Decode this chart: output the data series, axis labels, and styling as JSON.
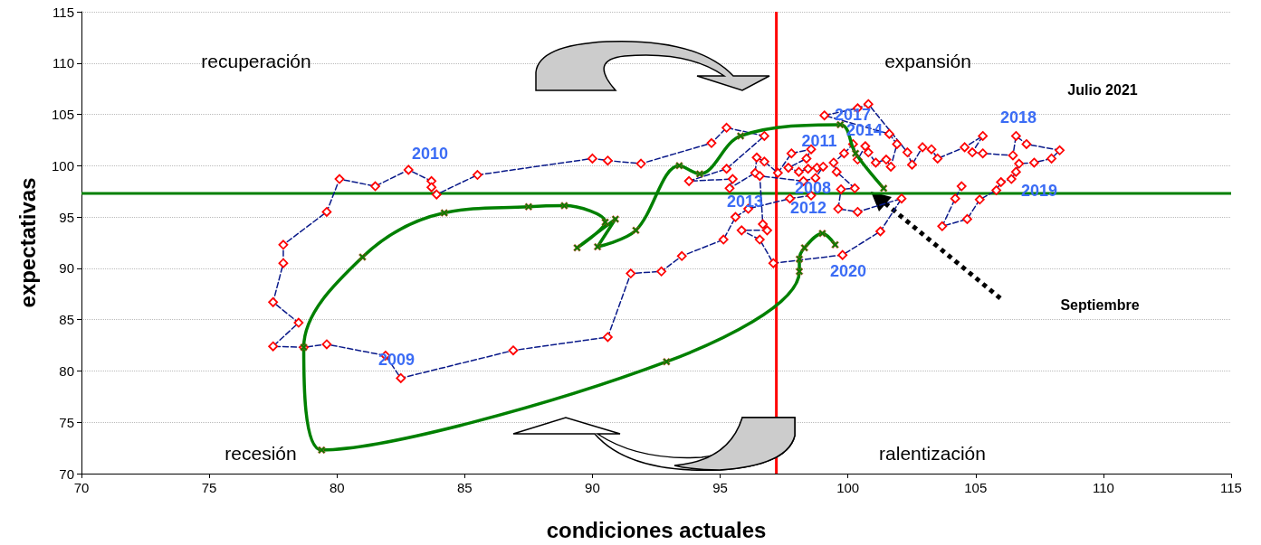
{
  "chart_data": {
    "type": "line",
    "xlabel": "condiciones actuales",
    "ylabel": "expectativas",
    "xlim": [
      70,
      115
    ],
    "xticks": [
      70,
      75,
      80,
      85,
      90,
      95,
      100,
      105,
      110,
      115
    ],
    "ylim": [
      70,
      115
    ],
    "yticks": [
      70,
      75,
      80,
      85,
      90,
      95,
      100,
      105,
      110,
      115
    ],
    "grid": "y",
    "series": [
      {
        "color": "#ff0000",
        "marker": "diamond",
        "line_style": "dashed",
        "x": [
          98.56,
          97.73,
          96.1,
          95.6,
          95.13,
          93.5,
          92.7,
          91.5,
          90.6,
          86.9,
          82.5,
          81.9,
          79.6,
          78.7,
          77.5,
          78.5,
          77.5,
          77.9,
          77.9,
          79.6,
          80.1,
          81.5,
          82.8,
          83.7,
          83.7,
          83.9,
          85.5,
          90.0,
          90.6,
          91.9,
          94.66,
          95.25,
          96.73,
          95.25,
          93.78,
          95.49,
          95.37,
          96.37,
          96.43,
          96.73,
          97.26,
          97.79,
          98.56,
          98.38,
          97.67,
          98.08,
          98.44,
          98.79,
          99.03,
          98.73,
          98.26,
          96.55,
          96.67,
          96.84,
          95.84,
          96.55,
          97.08,
          99.79,
          101.27,
          102.1,
          100.38,
          99.62,
          99.73,
          100.27,
          99.56,
          99.44,
          99.85,
          100.2,
          100.38,
          100.68,
          100.8,
          101.09,
          101.5,
          101.68,
          101.92,
          101.62,
          99.08,
          100.38,
          100.8,
          102.33,
          102.51,
          102.92,
          103.27,
          103.51,
          104.57,
          105.28,
          104.87,
          105.28,
          106.46,
          106.58,
          106.99,
          108.29,
          107.97,
          107.29,
          106.7,
          106.58,
          106.4,
          105.99,
          105.81,
          105.16,
          104.67,
          103.69,
          104.2,
          104.45
        ],
        "values": [
          97.1,
          96.8,
          95.8,
          95.0,
          92.8,
          91.2,
          89.7,
          89.5,
          83.3,
          82.0,
          79.3,
          81.5,
          82.6,
          82.3,
          82.4,
          84.7,
          86.7,
          90.5,
          92.3,
          95.5,
          98.7,
          98.0,
          99.6,
          98.5,
          97.9,
          97.2,
          99.1,
          100.7,
          100.5,
          100.2,
          102.2,
          103.7,
          102.9,
          99.7,
          98.5,
          98.7,
          97.8,
          99.3,
          100.8,
          100.4,
          99.3,
          101.2,
          101.6,
          100.7,
          99.8,
          99.4,
          99.7,
          99.8,
          99.9,
          98.8,
          98.5,
          99.0,
          94.3,
          93.7,
          93.7,
          92.8,
          90.5,
          91.3,
          93.6,
          96.8,
          95.5,
          95.8,
          97.7,
          97.8,
          99.4,
          100.3,
          101.2,
          102.1,
          100.6,
          101.9,
          101.3,
          100.3,
          100.6,
          99.9,
          102.1,
          103.1,
          104.9,
          105.6,
          106.0,
          101.3,
          100.1,
          101.8,
          101.6,
          100.7,
          101.8,
          102.9,
          101.3,
          101.2,
          101.0,
          102.9,
          102.1,
          101.5,
          100.7,
          100.3,
          100.2,
          99.4,
          98.7,
          98.4,
          97.6,
          96.7,
          94.8,
          94.1,
          96.8,
          98.0
        ]
      },
      {
        "color": "#008000",
        "marker": "cross",
        "line_style": "solid",
        "x": [
          99.5,
          99.0,
          98.3,
          98.1,
          98.1,
          92.9,
          79.4,
          78.7,
          81.0,
          84.2,
          87.5,
          88.9,
          90.5,
          89.4,
          90.9,
          90.2,
          91.7,
          93.4,
          94.2,
          95.8,
          99.7,
          100.3,
          101.4
        ],
        "values": [
          92.3,
          93.4,
          92.0,
          90.9,
          89.7,
          80.9,
          72.3,
          82.3,
          91.1,
          95.4,
          96.0,
          96.1,
          94.5,
          92.0,
          94.8,
          92.1,
          93.7,
          100.0,
          99.2,
          102.9,
          104.0,
          101.2,
          97.8
        ]
      }
    ],
    "ref_lines": [
      {
        "axis": "y",
        "value": 97.3,
        "color": "#008000"
      },
      {
        "axis": "x",
        "value": 97.2,
        "color": "#ff0000"
      }
    ],
    "annotations": [
      "recuperación",
      "expansión",
      "recesión",
      "ralentización",
      "Julio 2021",
      "Septiembre",
      "2010",
      "2009",
      "2011",
      "2017",
      "2014",
      "2008",
      "2013",
      "2012",
      "2020",
      "2018",
      "2019"
    ]
  }
}
